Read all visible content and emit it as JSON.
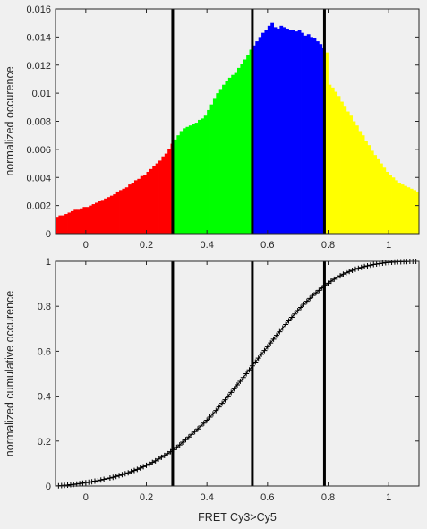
{
  "chart_data": [
    {
      "type": "bar",
      "title": "",
      "xlabel": "",
      "ylabel": "normalized occurence",
      "xlim": [
        -0.1,
        1.1
      ],
      "ylim": [
        0,
        0.016
      ],
      "xticks": [
        0,
        0.2,
        0.4,
        0.6,
        0.8,
        1
      ],
      "xtick_labels": [
        "0",
        "0.2",
        "0.4",
        "0.6",
        "0.8",
        "1"
      ],
      "yticks": [
        0,
        0.002,
        0.004,
        0.006,
        0.008,
        0.01,
        0.012,
        0.014,
        0.016
      ],
      "ytick_labels": [
        "0",
        "0.002",
        "0.004",
        "0.006",
        "0.008",
        "0.01",
        "0.012",
        "0.014",
        "0.016"
      ],
      "grid": false,
      "thresholds": [
        0.287,
        0.55,
        0.788
      ],
      "region_colors": [
        "#ff0000",
        "#00ff00",
        "#0000ff",
        "#ffff00"
      ],
      "bin_width": 0.01,
      "x": [
        -0.095,
        -0.085,
        -0.075,
        -0.065,
        -0.055,
        -0.045,
        -0.035,
        -0.025,
        -0.015,
        -0.005,
        0.005,
        0.015,
        0.025,
        0.035,
        0.045,
        0.055,
        0.065,
        0.075,
        0.085,
        0.095,
        0.105,
        0.115,
        0.125,
        0.135,
        0.145,
        0.155,
        0.165,
        0.175,
        0.185,
        0.195,
        0.205,
        0.215,
        0.225,
        0.235,
        0.245,
        0.255,
        0.265,
        0.275,
        0.285,
        0.295,
        0.305,
        0.315,
        0.325,
        0.335,
        0.345,
        0.355,
        0.365,
        0.375,
        0.385,
        0.395,
        0.405,
        0.415,
        0.425,
        0.435,
        0.445,
        0.455,
        0.465,
        0.475,
        0.485,
        0.495,
        0.505,
        0.515,
        0.525,
        0.535,
        0.545,
        0.555,
        0.565,
        0.575,
        0.585,
        0.595,
        0.605,
        0.615,
        0.625,
        0.635,
        0.645,
        0.655,
        0.665,
        0.675,
        0.685,
        0.695,
        0.705,
        0.715,
        0.725,
        0.735,
        0.745,
        0.755,
        0.765,
        0.775,
        0.785,
        0.795,
        0.805,
        0.815,
        0.825,
        0.835,
        0.845,
        0.855,
        0.865,
        0.875,
        0.885,
        0.895,
        0.905,
        0.915,
        0.925,
        0.935,
        0.945,
        0.955,
        0.965,
        0.975,
        0.985,
        0.995,
        1.005,
        1.015,
        1.025,
        1.035,
        1.045,
        1.055,
        1.065,
        1.075,
        1.085,
        1.095
      ],
      "values": [
        0.0012,
        0.0013,
        0.0013,
        0.0014,
        0.0015,
        0.0016,
        0.0017,
        0.0017,
        0.0018,
        0.0019,
        0.0019,
        0.002,
        0.0021,
        0.0022,
        0.0023,
        0.0024,
        0.0025,
        0.0026,
        0.0027,
        0.0028,
        0.003,
        0.0031,
        0.0032,
        0.0033,
        0.0035,
        0.0036,
        0.0038,
        0.0039,
        0.0041,
        0.0042,
        0.0044,
        0.0046,
        0.0048,
        0.005,
        0.0052,
        0.0055,
        0.0057,
        0.006,
        0.0064,
        0.0067,
        0.007,
        0.0073,
        0.0075,
        0.0076,
        0.0077,
        0.0078,
        0.0079,
        0.0081,
        0.0082,
        0.0084,
        0.0088,
        0.0092,
        0.0096,
        0.01,
        0.0103,
        0.0106,
        0.0109,
        0.0111,
        0.0113,
        0.0115,
        0.0118,
        0.0121,
        0.0124,
        0.0127,
        0.0131,
        0.0134,
        0.0137,
        0.014,
        0.0143,
        0.0145,
        0.0148,
        0.015,
        0.0147,
        0.0146,
        0.0148,
        0.0147,
        0.0146,
        0.0145,
        0.0145,
        0.0144,
        0.0145,
        0.0143,
        0.0141,
        0.0142,
        0.014,
        0.0139,
        0.0137,
        0.0135,
        0.0132,
        0.0129,
        0.0106,
        0.0104,
        0.0101,
        0.0098,
        0.0094,
        0.0091,
        0.0087,
        0.0084,
        0.008,
        0.0077,
        0.0073,
        0.007,
        0.0066,
        0.0063,
        0.0059,
        0.0056,
        0.0053,
        0.005,
        0.0047,
        0.0044,
        0.0042,
        0.004,
        0.0038,
        0.0036,
        0.0035,
        0.0034,
        0.0033,
        0.0032,
        0.0031,
        0.003
      ]
    },
    {
      "type": "line",
      "title": "",
      "xlabel": "FRET Cy3>Cy5",
      "ylabel": "normalized cumulative occurence",
      "xlim": [
        -0.1,
        1.1
      ],
      "ylim": [
        0,
        1
      ],
      "xticks": [
        0,
        0.2,
        0.4,
        0.6,
        0.8,
        1
      ],
      "xtick_labels": [
        "0",
        "0.2",
        "0.4",
        "0.6",
        "0.8",
        "1"
      ],
      "yticks": [
        0,
        0.2,
        0.4,
        0.6,
        0.8,
        1
      ],
      "ytick_labels": [
        "0",
        "0.2",
        "0.4",
        "0.6",
        "0.8",
        "1"
      ],
      "grid": false,
      "marker": "+",
      "line_color": "#000000",
      "thresholds": [
        0.287,
        0.55,
        0.788
      ],
      "x": [
        -0.09,
        -0.08,
        -0.07,
        -0.06,
        -0.05,
        -0.04,
        -0.03,
        -0.02,
        -0.01,
        0.0,
        0.01,
        0.02,
        0.03,
        0.04,
        0.05,
        0.06,
        0.07,
        0.08,
        0.09,
        0.1,
        0.11,
        0.12,
        0.13,
        0.14,
        0.15,
        0.16,
        0.17,
        0.18,
        0.19,
        0.2,
        0.21,
        0.22,
        0.23,
        0.24,
        0.25,
        0.26,
        0.27,
        0.28,
        0.29,
        0.3,
        0.31,
        0.32,
        0.33,
        0.34,
        0.35,
        0.36,
        0.37,
        0.38,
        0.39,
        0.4,
        0.41,
        0.42,
        0.43,
        0.44,
        0.45,
        0.46,
        0.47,
        0.48,
        0.49,
        0.5,
        0.51,
        0.52,
        0.53,
        0.54,
        0.55,
        0.56,
        0.57,
        0.58,
        0.59,
        0.6,
        0.61,
        0.62,
        0.63,
        0.64,
        0.65,
        0.66,
        0.67,
        0.68,
        0.69,
        0.7,
        0.71,
        0.72,
        0.73,
        0.74,
        0.75,
        0.76,
        0.77,
        0.78,
        0.79,
        0.8,
        0.81,
        0.82,
        0.83,
        0.84,
        0.85,
        0.86,
        0.87,
        0.88,
        0.89,
        0.9,
        0.91,
        0.92,
        0.93,
        0.94,
        0.95,
        0.96,
        0.97,
        0.98,
        0.99,
        1.0,
        1.01,
        1.02,
        1.03,
        1.04,
        1.05,
        1.06,
        1.07,
        1.08,
        1.09
      ],
      "values": [
        0.001,
        0.002,
        0.003,
        0.004,
        0.006,
        0.007,
        0.009,
        0.011,
        0.013,
        0.015,
        0.017,
        0.019,
        0.022,
        0.024,
        0.027,
        0.03,
        0.033,
        0.036,
        0.039,
        0.043,
        0.047,
        0.051,
        0.055,
        0.059,
        0.064,
        0.069,
        0.074,
        0.08,
        0.086,
        0.092,
        0.098,
        0.105,
        0.112,
        0.12,
        0.128,
        0.136,
        0.144,
        0.153,
        0.162,
        0.172,
        0.183,
        0.195,
        0.206,
        0.218,
        0.23,
        0.242,
        0.254,
        0.267,
        0.28,
        0.293,
        0.307,
        0.321,
        0.336,
        0.352,
        0.368,
        0.384,
        0.4,
        0.417,
        0.433,
        0.45,
        0.466,
        0.483,
        0.5,
        0.517,
        0.535,
        0.552,
        0.569,
        0.586,
        0.603,
        0.62,
        0.637,
        0.654,
        0.671,
        0.687,
        0.703,
        0.719,
        0.735,
        0.751,
        0.766,
        0.781,
        0.795,
        0.809,
        0.822,
        0.835,
        0.848,
        0.86,
        0.871,
        0.882,
        0.893,
        0.903,
        0.912,
        0.921,
        0.929,
        0.936,
        0.943,
        0.949,
        0.955,
        0.96,
        0.965,
        0.969,
        0.973,
        0.977,
        0.98,
        0.983,
        0.986,
        0.988,
        0.99,
        0.992,
        0.994,
        0.995,
        0.996,
        0.997,
        0.998,
        0.998,
        0.999,
        0.999,
        1.0,
        1.0,
        1.0
      ]
    }
  ]
}
